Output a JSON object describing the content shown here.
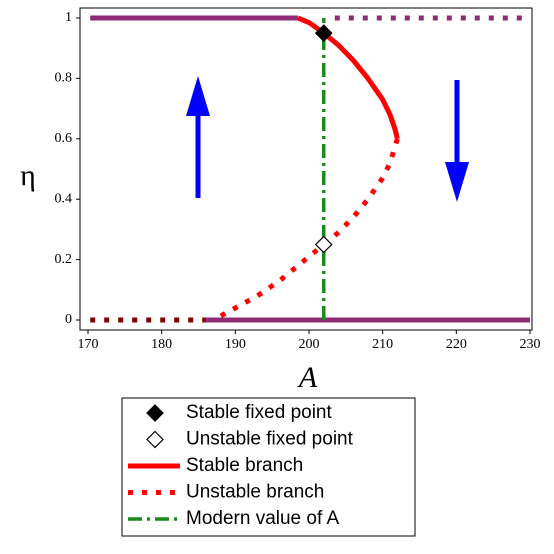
{
  "chart_data": {
    "type": "line",
    "x_label": "A",
    "y_label": "η",
    "xlim": [
      170,
      230
    ],
    "xticks": [
      170,
      180,
      190,
      200,
      210,
      220,
      230
    ],
    "ylim": [
      0,
      1
    ],
    "yticks": [
      0,
      0.2,
      0.4,
      0.6,
      0.8,
      1
    ],
    "series": [
      {
        "name": "Stable fixed point",
        "color": "#000000",
        "style": "diamond-filled",
        "x": [
          202
        ],
        "values": [
          0.95
        ]
      },
      {
        "name": "Unstable fixed point",
        "color": "#000000",
        "style": "diamond-open",
        "x": [
          202
        ],
        "values": [
          0.25
        ]
      },
      {
        "name": "Stable branch",
        "color": "#ff0000",
        "style": "solid",
        "x": [
          198.5,
          200,
          202,
          204,
          206,
          208,
          210,
          211,
          211.7,
          212
        ],
        "values": [
          1,
          0.985,
          0.95,
          0.91,
          0.86,
          0.8,
          0.73,
          0.68,
          0.63,
          0.6
        ]
      },
      {
        "name": "Unstable branch",
        "color": "#ff0000",
        "style": "dotted",
        "x": [
          212,
          211,
          210,
          208,
          206,
          204,
          202,
          199,
          196,
          193,
          190,
          187
        ],
        "values": [
          0.6,
          0.52,
          0.47,
          0.4,
          0.34,
          0.29,
          0.25,
          0.19,
          0.13,
          0.08,
          0.04,
          0
        ]
      },
      {
        "name": "Modern value of A",
        "color": "#1a8a1a",
        "style": "dashdot",
        "x": [
          202,
          202
        ],
        "values": [
          0,
          1
        ]
      },
      {
        "color": "#8e2b74",
        "style": "solid",
        "x": [
          170.3,
          198.5
        ],
        "values": [
          1,
          1
        ]
      },
      {
        "color": "#8e2b74",
        "style": "dotted",
        "x": [
          203.5,
          230
        ],
        "values": [
          1,
          1
        ]
      },
      {
        "color": "#800000",
        "style": "dotted",
        "x": [
          170.3,
          186
        ],
        "values": [
          0,
          0
        ]
      },
      {
        "color": "#8e2b74",
        "style": "solid",
        "x": [
          186,
          230
        ],
        "values": [
          0,
          0
        ]
      }
    ]
  }
}
